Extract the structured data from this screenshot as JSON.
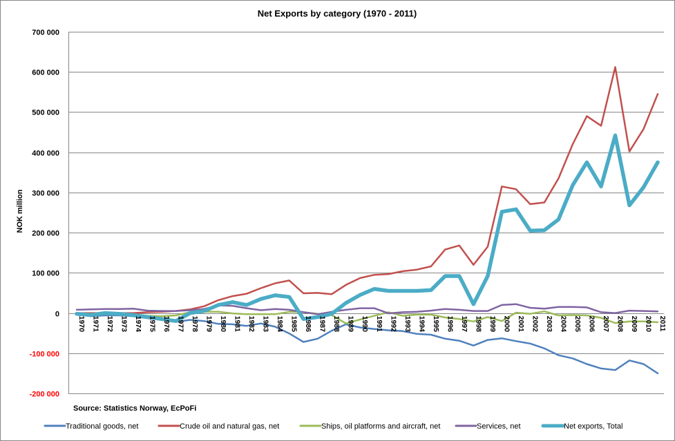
{
  "chart_data": {
    "type": "line",
    "title": "Net Exports by category (1970 - 2011)",
    "xlabel": "",
    "ylabel": "NOK million",
    "ylim": [
      -200000,
      700000
    ],
    "yticks": [
      700000,
      600000,
      500000,
      400000,
      300000,
      200000,
      100000,
      0,
      -100000,
      -200000
    ],
    "ytick_labels": [
      "700 000",
      "600 000",
      "500 000",
      "400 000",
      "300 000",
      "200 000",
      "100 000",
      "0",
      "-100 000",
      "-200 000"
    ],
    "negative_tick_color": "#ff0000",
    "grid": true,
    "legend_position": "bottom",
    "source_note": "Source: Statistics  Norway, EcPoFi",
    "categories": [
      "1970",
      "1971",
      "1972",
      "1973",
      "1974",
      "1975",
      "1976",
      "1977",
      "1978",
      "1979",
      "1980",
      "1981",
      "1982",
      "1983",
      "1984",
      "1985",
      "1986",
      "1987",
      "1988",
      "1989",
      "1990",
      "1991",
      "1992",
      "1993",
      "1994",
      "1995",
      "1996",
      "1997",
      "1998",
      "1999",
      "2000",
      "2001",
      "2002",
      "2003",
      "2004",
      "2005",
      "2006",
      "2007",
      "2008",
      "2009",
      "2010",
      "2011"
    ],
    "series": [
      {
        "name": "Traditional goods, net",
        "color": "#4f81bd",
        "width": "normal",
        "values": [
          -3000,
          -8000,
          -6000,
          -6000,
          -8000,
          -13000,
          -17000,
          -22000,
          -17000,
          -20000,
          -27000,
          -28000,
          -32000,
          -26000,
          -34000,
          -51000,
          -72000,
          -64000,
          -44000,
          -28000,
          -36000,
          -40000,
          -43000,
          -45000,
          -52000,
          -54000,
          -64000,
          -69000,
          -81000,
          -67000,
          -63000,
          -70000,
          -76000,
          -88000,
          -105000,
          -113000,
          -127000,
          -138000,
          -142000,
          -118000,
          -127000,
          -150000
        ]
      },
      {
        "name": "Crude oil and natural gas, net",
        "color": "#c0504d",
        "width": "normal",
        "values": [
          0,
          0,
          0,
          0,
          0,
          2000,
          3000,
          5000,
          9000,
          17000,
          32000,
          42000,
          48000,
          62000,
          74000,
          81000,
          49000,
          50000,
          47000,
          70000,
          87000,
          95000,
          97000,
          104000,
          108000,
          116000,
          158000,
          168000,
          120000,
          165000,
          315000,
          308000,
          271000,
          275000,
          335000,
          420000,
          490000,
          466000,
          612000,
          402000,
          458000,
          545000
        ]
      },
      {
        "name": "Ships, oil platforms and aircraft, net",
        "color": "#9bbb59",
        "width": "normal",
        "values": [
          0,
          -2000,
          -3000,
          -4000,
          -4000,
          -7000,
          -8000,
          -6000,
          2000,
          3000,
          3000,
          -1000,
          -3000,
          -3000,
          -3000,
          3000,
          2000,
          -2000,
          -5000,
          -26000,
          -16000,
          -7000,
          2000,
          -7000,
          -4000,
          -4000,
          -11000,
          -15000,
          -21000,
          -10000,
          -20000,
          1000,
          -2000,
          4000,
          -6000,
          -5000,
          -6000,
          -12000,
          -25000,
          -21000,
          -21000,
          -23000
        ]
      },
      {
        "name": "Services, net",
        "color": "#8064a2",
        "width": "normal",
        "values": [
          8000,
          9000,
          10000,
          10000,
          11000,
          6000,
          5000,
          5000,
          7000,
          10000,
          19000,
          18000,
          12000,
          7000,
          10000,
          8000,
          2000,
          -3000,
          3000,
          8000,
          12000,
          12000,
          -1000,
          2000,
          3000,
          6000,
          10000,
          8000,
          5000,
          5000,
          20000,
          22000,
          13000,
          11000,
          15000,
          15000,
          14000,
          2000,
          0,
          6000,
          5000,
          4000
        ]
      },
      {
        "name": "Net exports, Total",
        "color": "#4bacc6",
        "width": "thick",
        "values": [
          -2000,
          -5000,
          0,
          -2000,
          -5000,
          -10000,
          -15000,
          -20000,
          0,
          5000,
          20000,
          27000,
          20000,
          35000,
          44000,
          40000,
          -15000,
          -10000,
          -2000,
          25000,
          45000,
          60000,
          55000,
          55000,
          55000,
          57000,
          92000,
          92000,
          22000,
          92000,
          252000,
          258000,
          205000,
          206000,
          233000,
          318000,
          375000,
          315000,
          442000,
          268000,
          313000,
          375000
        ]
      }
    ]
  }
}
